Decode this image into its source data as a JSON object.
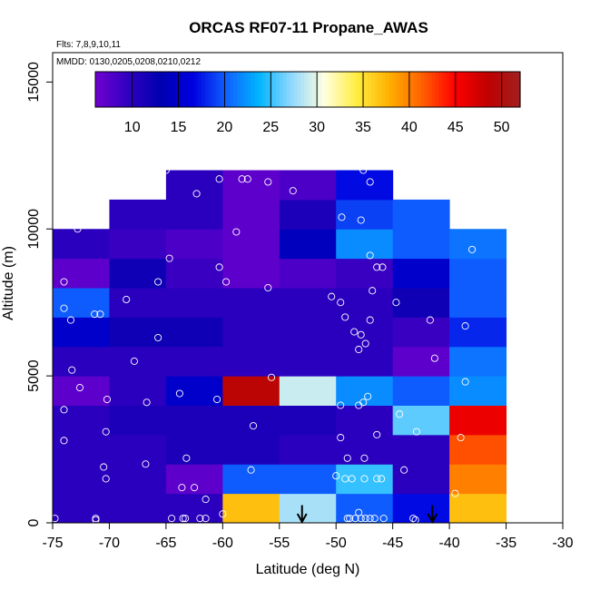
{
  "chart_data": {
    "type": "heatmap",
    "title": "ORCAS RF07-11 Propane_AWAS",
    "flights_note": "Flts: 7,8,9,10,11",
    "dates_note": "MMDD: 0130,0205,0208,0210,0212",
    "xlabel": "Latitude (deg N)",
    "ylabel": "Altitude (m)",
    "xlim": [
      -75,
      -30
    ],
    "ylim": [
      0,
      16000
    ],
    "x_ticks": [
      -75,
      -70,
      -65,
      -60,
      -55,
      -50,
      -45,
      -40,
      -35,
      -30
    ],
    "x_tick_labels": [
      "-75",
      "-70",
      "-65",
      "-60",
      "-55",
      "-50",
      "-45",
      "-40",
      "-35",
      "-30"
    ],
    "y_ticks": [
      0,
      5000,
      10000,
      15000
    ],
    "y_tick_labels": [
      "0",
      "5000",
      "10000",
      "15000"
    ],
    "colorbar": {
      "min": 6,
      "max": 52,
      "ticks": [
        10,
        15,
        20,
        25,
        30,
        35,
        40,
        45,
        50
      ],
      "tick_labels": [
        "10",
        "15",
        "20",
        "25",
        "30",
        "35",
        "40",
        "45",
        "50"
      ],
      "colors": [
        "#7000d0",
        "#3000c0",
        "#0000b0",
        "#0000e0",
        "#1060ff",
        "#00b4ff",
        "#90d8ff",
        "#ffffe0",
        "#ffee40",
        "#ffb000",
        "#ff6000",
        "#ff0000",
        "#c00000",
        "#a02020"
      ]
    },
    "bin_width_deg": 5,
    "bin_height_m": 1000,
    "grid_x_start": -75,
    "row_x_starts": [
      -75,
      -75,
      -75,
      -75,
      -75,
      -75,
      -75,
      -75,
      -75,
      -75,
      -70,
      -65
    ],
    "grid_rows": [
      [
        10,
        10,
        10,
        37,
        28,
        20,
        17,
        37
      ],
      [
        10,
        10,
        7,
        20,
        20,
        25,
        10,
        40
      ],
      [
        10,
        10,
        11,
        11,
        10,
        10,
        10,
        42
      ],
      [
        10,
        11,
        11,
        11,
        11,
        10,
        26,
        46
      ],
      [
        7,
        10,
        15,
        49,
        29,
        22,
        20,
        22
      ],
      [
        10,
        10,
        10,
        10,
        10,
        10,
        7,
        21
      ],
      [
        15,
        12,
        12,
        10,
        10,
        10,
        9,
        18
      ],
      [
        20,
        10,
        10,
        10,
        10,
        10,
        12,
        20
      ],
      [
        7,
        12,
        9,
        7,
        8,
        9,
        15,
        20
      ],
      [
        10,
        9,
        8,
        7,
        14,
        22,
        20,
        21
      ],
      [
        10,
        10,
        7,
        11,
        19,
        20
      ],
      [
        10,
        7,
        8,
        17
      ]
    ],
    "points": [
      [
        -74.8,
        150
      ],
      [
        -71.2,
        150
      ],
      [
        -71.2,
        100
      ],
      [
        -64.5,
        150
      ],
      [
        -63.5,
        150
      ],
      [
        -63.3,
        150
      ],
      [
        -62.0,
        150
      ],
      [
        -61.5,
        150
      ],
      [
        -60.0,
        300
      ],
      [
        -49.0,
        150
      ],
      [
        -48.8,
        150
      ],
      [
        -48.3,
        150
      ],
      [
        -48.0,
        350
      ],
      [
        -47.8,
        150
      ],
      [
        -47.4,
        150
      ],
      [
        -47.0,
        150
      ],
      [
        -46.6,
        150
      ],
      [
        -45.8,
        150
      ],
      [
        -43.0,
        100
      ],
      [
        -43.2,
        150
      ],
      [
        -39.5,
        1000
      ],
      [
        -61.5,
        800
      ],
      [
        -63.6,
        1200
      ],
      [
        -62.5,
        1200
      ],
      [
        -57.5,
        1800
      ],
      [
        -50.0,
        1600
      ],
      [
        -49.2,
        1500
      ],
      [
        -48.6,
        1500
      ],
      [
        -47.5,
        1500
      ],
      [
        -46.4,
        1500
      ],
      [
        -46.0,
        1500
      ],
      [
        -44.0,
        1800
      ],
      [
        -70.3,
        1500
      ],
      [
        -70.5,
        1900
      ],
      [
        -66.8,
        2000
      ],
      [
        -63.2,
        2200
      ],
      [
        -49.0,
        2200
      ],
      [
        -47.5,
        2200
      ],
      [
        -74.0,
        2800
      ],
      [
        -70.3,
        3100
      ],
      [
        -57.3,
        3300
      ],
      [
        -49.6,
        2900
      ],
      [
        -46.4,
        3000
      ],
      [
        -42.9,
        3100
      ],
      [
        -39.0,
        2900
      ],
      [
        -74.0,
        3850
      ],
      [
        -70.2,
        4200
      ],
      [
        -66.7,
        4100
      ],
      [
        -63.8,
        4400
      ],
      [
        -60.5,
        4200
      ],
      [
        -55.7,
        4950
      ],
      [
        -49.6,
        4000
      ],
      [
        -48.0,
        4000
      ],
      [
        -47.6,
        4100
      ],
      [
        -47.2,
        4300
      ],
      [
        -44.4,
        3700
      ],
      [
        -38.6,
        4800
      ],
      [
        -73.3,
        5200
      ],
      [
        -72.6,
        4600
      ],
      [
        -67.8,
        5500
      ],
      [
        -41.3,
        5600
      ],
      [
        -48.0,
        5900
      ],
      [
        -47.4,
        6100
      ],
      [
        -47.8,
        6400
      ],
      [
        -65.7,
        6300
      ],
      [
        -49.2,
        7000
      ],
      [
        -48.4,
        6500
      ],
      [
        -47.0,
        6900
      ],
      [
        -71.3,
        7100
      ],
      [
        -70.8,
        7100
      ],
      [
        -74.0,
        7300
      ],
      [
        -73.4,
        6900
      ],
      [
        -68.5,
        7600
      ],
      [
        -50.4,
        7700
      ],
      [
        -49.6,
        7500
      ],
      [
        -46.8,
        7900
      ],
      [
        -44.7,
        7500
      ],
      [
        -41.7,
        6900
      ],
      [
        -38.6,
        6700
      ],
      [
        -74.0,
        8200
      ],
      [
        -65.7,
        8200
      ],
      [
        -59.7,
        8200
      ],
      [
        -56.0,
        8000
      ],
      [
        -60.3,
        8700
      ],
      [
        -46.4,
        8700
      ],
      [
        -45.9,
        8700
      ],
      [
        -47.0,
        9100
      ],
      [
        -38.0,
        9300
      ],
      [
        -64.7,
        9000
      ],
      [
        -72.8,
        10000
      ],
      [
        -58.8,
        9900
      ],
      [
        -49.5,
        10400
      ],
      [
        -47.8,
        10300
      ],
      [
        -62.3,
        11200
      ],
      [
        -53.8,
        11300
      ],
      [
        -65.0,
        12000
      ],
      [
        -60.3,
        11700
      ],
      [
        -58.3,
        11700
      ],
      [
        -57.8,
        11700
      ],
      [
        -56.0,
        11600
      ],
      [
        -47.6,
        12000
      ],
      [
        -47.0,
        11600
      ]
    ],
    "arrows_lat": [
      -53,
      -41.5
    ]
  }
}
